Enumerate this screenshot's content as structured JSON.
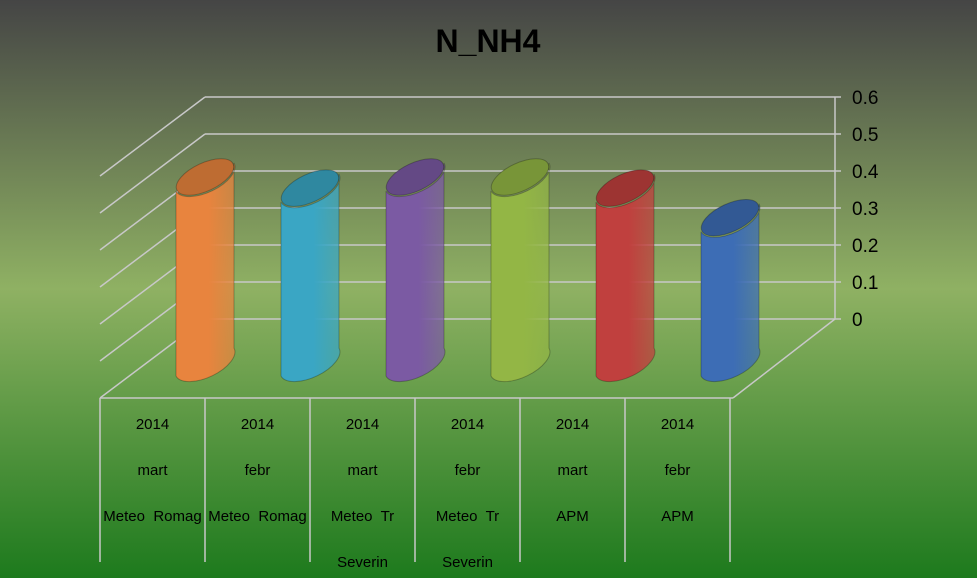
{
  "chart_data": {
    "type": "bar",
    "title": "N_NH4",
    "xlabel": "",
    "ylabel": "",
    "ylim": [
      0,
      0.6
    ],
    "yticks": [
      "0",
      "0.1",
      "0.2",
      "0.3",
      "0.4",
      "0.5",
      "0.6"
    ],
    "grid": true,
    "legend": "none",
    "categories": [
      {
        "lines": [
          "2014",
          "mart",
          "Meteo  Romag"
        ],
        "value": 0.5,
        "color": "#e8843e"
      },
      {
        "lines": [
          "2014",
          "febr",
          "Meteo  Romag"
        ],
        "value": 0.47,
        "color": "#3aa6c4"
      },
      {
        "lines": [
          "2014",
          "mart",
          "Meteo  Tr",
          "Severin"
        ],
        "value": 0.5,
        "color": "#7b5aa3"
      },
      {
        "lines": [
          "2014",
          "febr",
          "Meteo  Tr",
          "Severin"
        ],
        "value": 0.5,
        "color": "#93b645"
      },
      {
        "lines": [
          "2014",
          "mart",
          "APM"
        ],
        "value": 0.47,
        "color": "#c0403e"
      },
      {
        "lines": [
          "2014",
          "febr",
          "APM"
        ],
        "value": 0.39,
        "color": "#3d6db5"
      }
    ],
    "colors": {
      "background_top": "#454545",
      "background_mid": "#8fb163",
      "background_bottom": "#1d7a1d",
      "gridline": "#c8c8c8"
    }
  }
}
